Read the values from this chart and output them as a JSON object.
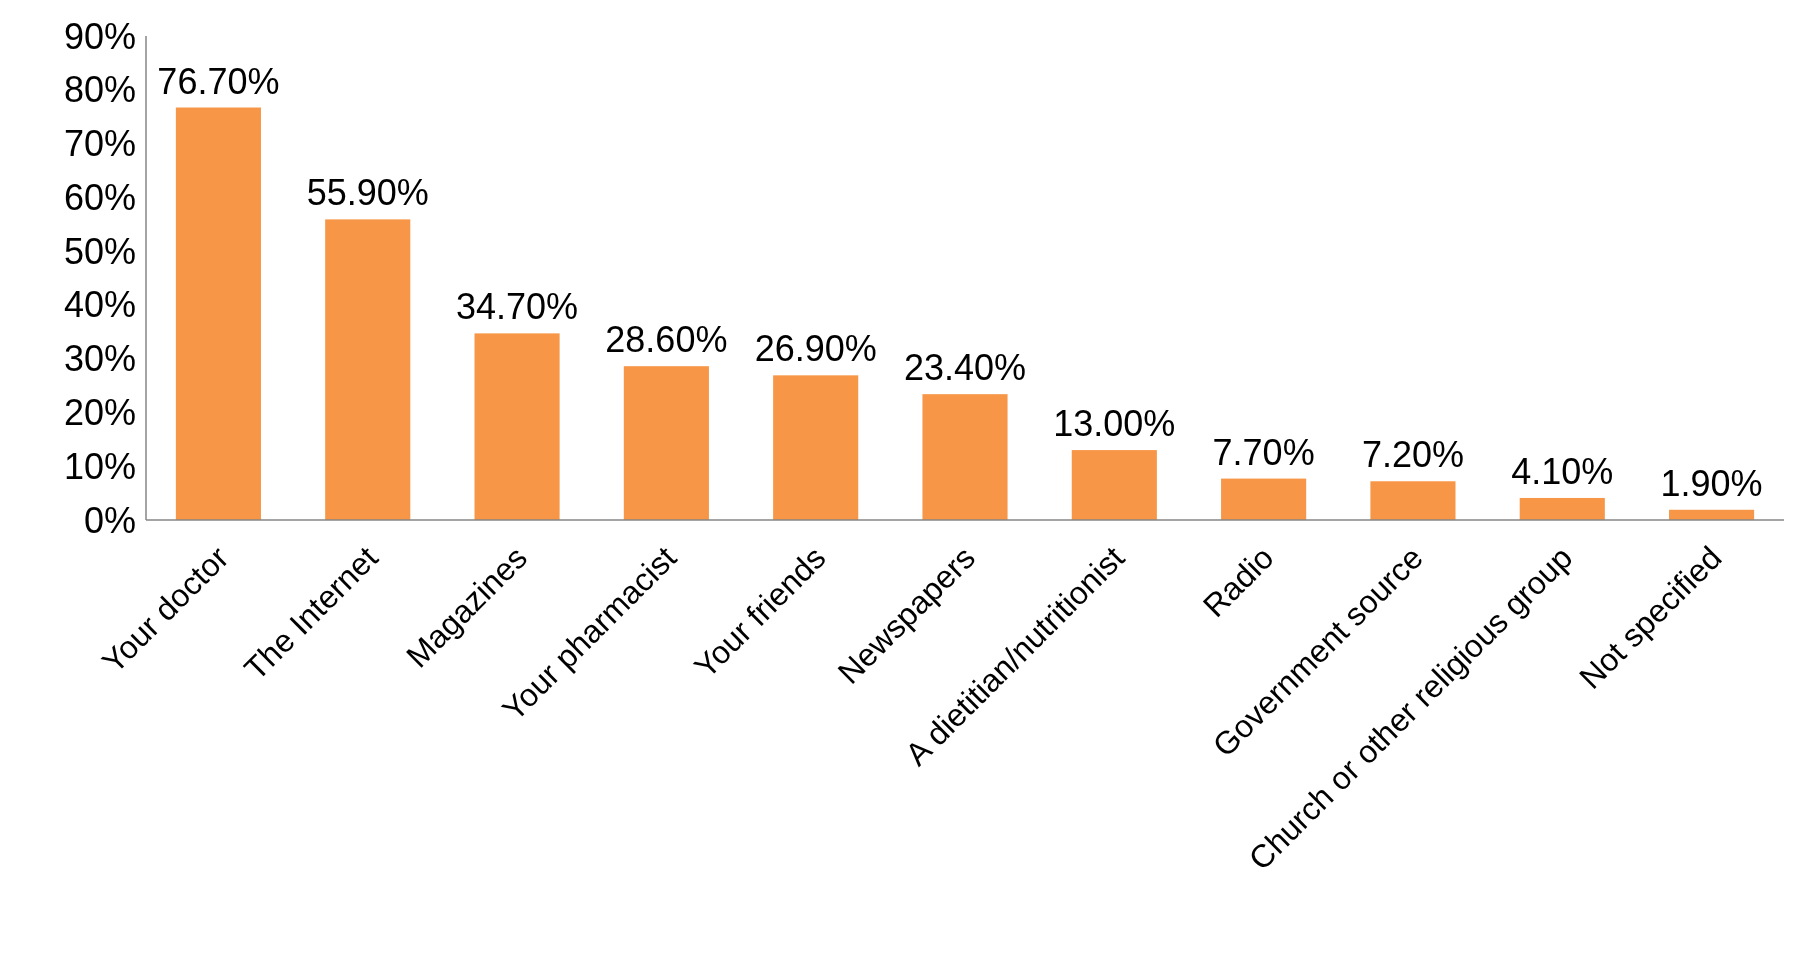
{
  "chart_data": {
    "type": "bar",
    "categories": [
      "Your doctor",
      "The Internet",
      "Magazines",
      "Your pharmacist",
      "Your friends",
      "Newspapers",
      "A dietitian/nutritionist",
      "Radio",
      "Government source",
      "Church or other religious group",
      "Not specified"
    ],
    "values": [
      76.7,
      55.9,
      34.7,
      28.6,
      26.9,
      23.4,
      13.0,
      7.7,
      7.2,
      4.1,
      1.9
    ],
    "value_labels": [
      "76.70%",
      "55.90%",
      "34.70%",
      "28.60%",
      "26.90%",
      "23.40%",
      "13.00%",
      "7.70%",
      "7.20%",
      "4.10%",
      "1.90%"
    ],
    "color": "#f79646",
    "ylim": [
      0,
      90
    ],
    "yticks": [
      {
        "value": 0,
        "label": "0%"
      },
      {
        "value": 10,
        "label": "10%"
      },
      {
        "value": 20,
        "label": "20%"
      },
      {
        "value": 30,
        "label": "30%"
      },
      {
        "value": 40,
        "label": "40%"
      },
      {
        "value": 50,
        "label": "50%"
      },
      {
        "value": 60,
        "label": "60%"
      },
      {
        "value": 70,
        "label": "70%"
      },
      {
        "value": 80,
        "label": "80%"
      },
      {
        "value": 90,
        "label": "90%"
      }
    ],
    "grid": false
  }
}
